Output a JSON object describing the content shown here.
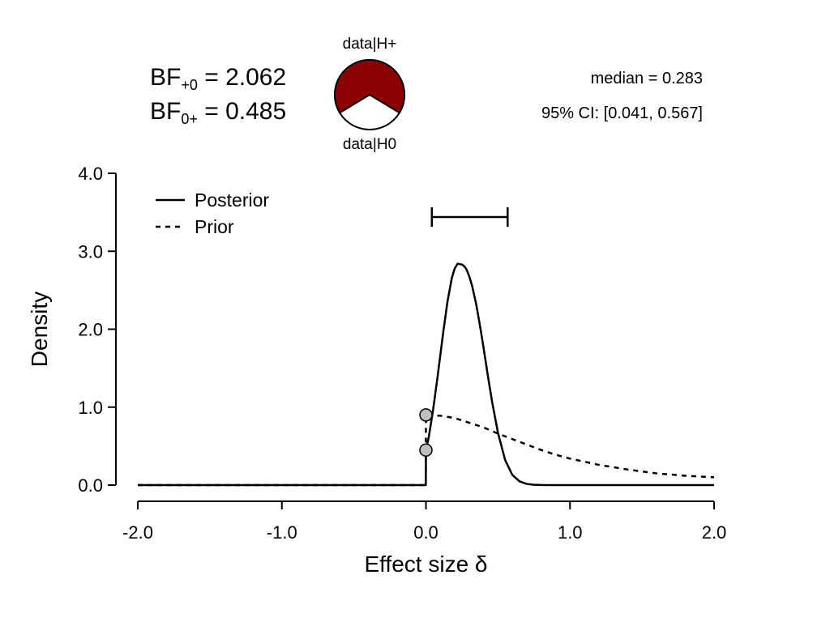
{
  "bayes_factor": {
    "bf10_label": "BF",
    "bf10_sub": "+0",
    "bf10_value": "2.062",
    "bf01_label": "BF",
    "bf01_sub": "0+",
    "bf01_value": "0.485"
  },
  "pie": {
    "top_label": "data|H+",
    "bottom_label": "data|H0",
    "h1_fraction": 0.673,
    "h1_color": "#8B0000",
    "h0_color": "#ffffff"
  },
  "summary": {
    "median": "median = 0.283",
    "ci": "95% CI: [0.041, 0.567]"
  },
  "chart_data": {
    "type": "line",
    "xlabel": "Effect size δ",
    "ylabel": "Density",
    "xlim": [
      -2.0,
      2.0
    ],
    "ylim": [
      0.0,
      4.0
    ],
    "x_ticks": [
      -2.0,
      -1.0,
      0.0,
      1.0,
      2.0
    ],
    "x_tick_labels": [
      "-2.0",
      "-1.0",
      "0.0",
      "1.0",
      "2.0"
    ],
    "y_ticks": [
      0.0,
      1.0,
      2.0,
      3.0,
      4.0
    ],
    "y_tick_labels": [
      "0.0",
      "1.0",
      "2.0",
      "3.0",
      "4.0"
    ],
    "legend_placement": "top-left",
    "legend": [
      {
        "name": "Posterior",
        "style": "solid"
      },
      {
        "name": "Prior",
        "style": "dashed"
      }
    ],
    "series": [
      {
        "name": "Posterior",
        "style": "solid",
        "x": [
          -2.0,
          -0.001,
          0.0,
          0.02,
          0.05,
          0.08,
          0.1,
          0.12,
          0.15,
          0.18,
          0.2,
          0.22,
          0.25,
          0.27,
          0.283,
          0.3,
          0.32,
          0.35,
          0.38,
          0.4,
          0.43,
          0.46,
          0.5,
          0.55,
          0.6,
          0.65,
          0.7,
          0.75,
          0.8,
          0.9,
          1.0,
          2.0
        ],
        "y": [
          0.0,
          0.0,
          0.45,
          0.62,
          0.97,
          1.38,
          1.67,
          1.96,
          2.36,
          2.66,
          2.78,
          2.84,
          2.83,
          2.8,
          2.76,
          2.68,
          2.56,
          2.31,
          1.99,
          1.76,
          1.4,
          1.06,
          0.67,
          0.32,
          0.13,
          0.047,
          0.015,
          0.004,
          0.001,
          0.0,
          0.0,
          0.0
        ]
      },
      {
        "name": "Prior",
        "style": "dashed",
        "x": [
          -2.0,
          -0.001,
          0.0,
          0.1,
          0.2,
          0.3,
          0.4,
          0.5,
          0.6,
          0.7,
          0.8,
          0.9,
          1.0,
          1.2,
          1.4,
          1.6,
          1.8,
          2.0
        ],
        "y": [
          0.0,
          0.0,
          0.9,
          0.89,
          0.86,
          0.8,
          0.74,
          0.66,
          0.59,
          0.52,
          0.45,
          0.39,
          0.34,
          0.26,
          0.2,
          0.15,
          0.12,
          0.1
        ]
      }
    ],
    "points": [
      {
        "x": 0.0,
        "y": 0.9
      },
      {
        "x": 0.0,
        "y": 0.45
      }
    ],
    "credible_interval": {
      "lower": 0.041,
      "upper": 0.567,
      "y": 3.2
    }
  }
}
